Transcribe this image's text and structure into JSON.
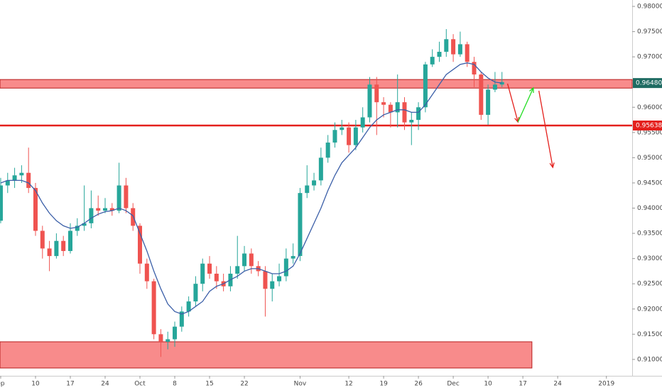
{
  "chart_data": {
    "type": "candlestick",
    "x": [
      0,
      1,
      2,
      3,
      4,
      5,
      6,
      7,
      8,
      9,
      10,
      11,
      12,
      13,
      14,
      15,
      16,
      17,
      18,
      19,
      20,
      21,
      22,
      23,
      24,
      25,
      26,
      27,
      28,
      29,
      30,
      31,
      32,
      33,
      34,
      35,
      36,
      37,
      38,
      39,
      40,
      41,
      42,
      43,
      44,
      45,
      46,
      47,
      48,
      49,
      50,
      51,
      52,
      53,
      54,
      55,
      56,
      57,
      58,
      59,
      60,
      61,
      62,
      63,
      64,
      65,
      66,
      67,
      68,
      69,
      70,
      71,
      72
    ],
    "open": [
      0.9375,
      0.9445,
      0.9455,
      0.9465,
      0.947,
      0.944,
      0.9355,
      0.932,
      0.9305,
      0.9335,
      0.9315,
      0.9355,
      0.9365,
      0.937,
      0.94,
      0.9395,
      0.94,
      0.9395,
      0.9445,
      0.94,
      0.9365,
      0.929,
      0.9255,
      0.915,
      0.9135,
      0.914,
      0.9165,
      0.9195,
      0.9215,
      0.925,
      0.929,
      0.927,
      0.9255,
      0.9245,
      0.927,
      0.9285,
      0.931,
      0.9285,
      0.9275,
      0.924,
      0.9255,
      0.9265,
      0.93,
      0.9305,
      0.943,
      0.9445,
      0.9455,
      0.95,
      0.953,
      0.9555,
      0.956,
      0.9525,
      0.956,
      0.958,
      0.9645,
      0.961,
      0.9605,
      0.959,
      0.961,
      0.957,
      0.9575,
      0.96,
      0.9685,
      0.97,
      0.971,
      0.9735,
      0.9705,
      0.9725,
      0.969,
      0.9665,
      0.9585,
      0.9635,
      0.9645
    ],
    "high": [
      0.946,
      0.947,
      0.948,
      0.9485,
      0.952,
      0.945,
      0.9365,
      0.9335,
      0.935,
      0.9345,
      0.937,
      0.938,
      0.9445,
      0.9435,
      0.9425,
      0.942,
      0.941,
      0.949,
      0.946,
      0.941,
      0.937,
      0.93,
      0.926,
      0.916,
      0.9155,
      0.9175,
      0.9205,
      0.9225,
      0.9265,
      0.93,
      0.9305,
      0.9285,
      0.927,
      0.9285,
      0.9345,
      0.9325,
      0.932,
      0.9295,
      0.9285,
      0.927,
      0.929,
      0.932,
      0.933,
      0.944,
      0.9485,
      0.947,
      0.952,
      0.9545,
      0.957,
      0.9575,
      0.957,
      0.9575,
      0.96,
      0.966,
      0.966,
      0.962,
      0.961,
      0.9665,
      0.962,
      0.959,
      0.961,
      0.969,
      0.9715,
      0.973,
      0.9755,
      0.9745,
      0.975,
      0.973,
      0.97,
      0.967,
      0.9645,
      0.967,
      0.967
    ],
    "low": [
      0.937,
      0.943,
      0.944,
      0.945,
      0.943,
      0.9345,
      0.93,
      0.9275,
      0.93,
      0.9305,
      0.931,
      0.9345,
      0.9355,
      0.936,
      0.9385,
      0.939,
      0.9385,
      0.939,
      0.939,
      0.9355,
      0.927,
      0.924,
      0.914,
      0.9105,
      0.912,
      0.9125,
      0.9155,
      0.9185,
      0.9205,
      0.9235,
      0.926,
      0.924,
      0.9235,
      0.9235,
      0.926,
      0.9275,
      0.927,
      0.9265,
      0.9185,
      0.9215,
      0.9245,
      0.9255,
      0.929,
      0.9295,
      0.942,
      0.9435,
      0.9445,
      0.949,
      0.952,
      0.9545,
      0.951,
      0.9515,
      0.955,
      0.957,
      0.9545,
      0.958,
      0.956,
      0.956,
      0.9555,
      0.9525,
      0.9555,
      0.959,
      0.968,
      0.969,
      0.97,
      0.969,
      0.97,
      0.968,
      0.964,
      0.9575,
      0.9565,
      0.963,
      0.964
    ],
    "close": [
      0.9445,
      0.9455,
      0.9465,
      0.947,
      0.944,
      0.9355,
      0.932,
      0.9305,
      0.9335,
      0.9315,
      0.9355,
      0.9365,
      0.937,
      0.94,
      0.9395,
      0.94,
      0.9395,
      0.9445,
      0.94,
      0.9365,
      0.929,
      0.9255,
      0.915,
      0.9135,
      0.914,
      0.9165,
      0.9195,
      0.9215,
      0.925,
      0.929,
      0.927,
      0.9255,
      0.9245,
      0.927,
      0.9285,
      0.931,
      0.9285,
      0.9275,
      0.924,
      0.9255,
      0.9265,
      0.93,
      0.9305,
      0.943,
      0.9445,
      0.9455,
      0.95,
      0.953,
      0.9555,
      0.956,
      0.9525,
      0.956,
      0.958,
      0.9645,
      0.961,
      0.9605,
      0.959,
      0.961,
      0.957,
      0.9575,
      0.96,
      0.9685,
      0.97,
      0.971,
      0.9735,
      0.9705,
      0.9725,
      0.969,
      0.9665,
      0.9585,
      0.9635,
      0.9645,
      0.965
    ],
    "ma": [
      0.945,
      0.9455,
      0.9455,
      0.9455,
      0.945,
      0.9435,
      0.941,
      0.939,
      0.9375,
      0.9365,
      0.936,
      0.9362,
      0.937,
      0.938,
      0.9388,
      0.9393,
      0.9395,
      0.94,
      0.9395,
      0.9385,
      0.935,
      0.9315,
      0.9275,
      0.924,
      0.921,
      0.9195,
      0.919,
      0.9195,
      0.9205,
      0.9215,
      0.9235,
      0.9245,
      0.925,
      0.9258,
      0.9265,
      0.9275,
      0.928,
      0.928,
      0.9275,
      0.927,
      0.927,
      0.9275,
      0.9285,
      0.931,
      0.934,
      0.937,
      0.94,
      0.9435,
      0.9465,
      0.949,
      0.9505,
      0.952,
      0.954,
      0.956,
      0.9575,
      0.9585,
      0.959,
      0.9595,
      0.9595,
      0.959,
      0.959,
      0.9605,
      0.9625,
      0.9645,
      0.9665,
      0.9675,
      0.9685,
      0.9688,
      0.9685,
      0.967,
      0.9658,
      0.965,
      0.9648
    ],
    "up_color": "#26a69a",
    "down_color": "#ef5350",
    "ma_color": "#3b5fa8",
    "xlim": [
      -0.1,
      90.7
    ],
    "ylim": [
      0.90675,
      0.98127
    ],
    "xticks": [
      {
        "value": 0,
        "label": "ep"
      },
      {
        "value": 5,
        "label": "10"
      },
      {
        "value": 10,
        "label": "17"
      },
      {
        "value": 15,
        "label": "24"
      },
      {
        "value": 20,
        "label": "Oct"
      },
      {
        "value": 25,
        "label": "8"
      },
      {
        "value": 30,
        "label": "15"
      },
      {
        "value": 35,
        "label": "22"
      },
      {
        "value": 43,
        "label": "Nov"
      },
      {
        "value": 50,
        "label": "12"
      },
      {
        "value": 55,
        "label": "19"
      },
      {
        "value": 60,
        "label": "26"
      },
      {
        "value": 65,
        "label": "Dec"
      },
      {
        "value": 70,
        "label": "10"
      },
      {
        "value": 75,
        "label": "17"
      },
      {
        "value": 80,
        "label": "24"
      },
      {
        "value": 87,
        "label": "2019"
      }
    ],
    "yticks": [
      {
        "value": 0.91,
        "label": "0.91000"
      },
      {
        "value": 0.915,
        "label": "0.91500"
      },
      {
        "value": 0.92,
        "label": "0.92000"
      },
      {
        "value": 0.925,
        "label": "0.92500"
      },
      {
        "value": 0.93,
        "label": "0.93000"
      },
      {
        "value": 0.935,
        "label": "0.93500"
      },
      {
        "value": 0.94,
        "label": "0.94000"
      },
      {
        "value": 0.945,
        "label": "0.94500"
      },
      {
        "value": 0.95,
        "label": "0.95000"
      },
      {
        "value": 0.955,
        "label": "0.95500"
      },
      {
        "value": 0.96,
        "label": "0.96000"
      },
      {
        "value": 0.965,
        "label": "0.96500"
      },
      {
        "value": 0.97,
        "label": "0.97000"
      },
      {
        "value": 0.975,
        "label": "0.97500"
      },
      {
        "value": 0.98,
        "label": "0.98000"
      }
    ],
    "zones": [
      {
        "y": [
          0.9638,
          0.9655
        ],
        "x": [
          -0.1,
          90.7
        ]
      },
      {
        "y": [
          0.9083,
          0.9135
        ],
        "x": [
          -0.1,
          76.3
        ]
      }
    ],
    "hline": {
      "value": 0.95638,
      "color": "#e4201c"
    },
    "price_labels": [
      {
        "value": 0.9648,
        "label": "0.96480",
        "color": "#1e6b62"
      },
      {
        "value": 0.95638,
        "label": "0.95638",
        "color": "#e4201c"
      }
    ],
    "arrows": [
      {
        "x": [
          72.8,
          74.3
        ],
        "y": [
          0.96468,
          0.95708
        ],
        "color": "#e4201c"
      },
      {
        "x": [
          74.3,
          76.5
        ],
        "y": [
          0.95708,
          0.96383
        ],
        "color": "#22dd22"
      },
      {
        "x": [
          77.3,
          79.3
        ],
        "y": [
          0.96327,
          0.94808
        ],
        "color": "#e4201c"
      }
    ]
  }
}
